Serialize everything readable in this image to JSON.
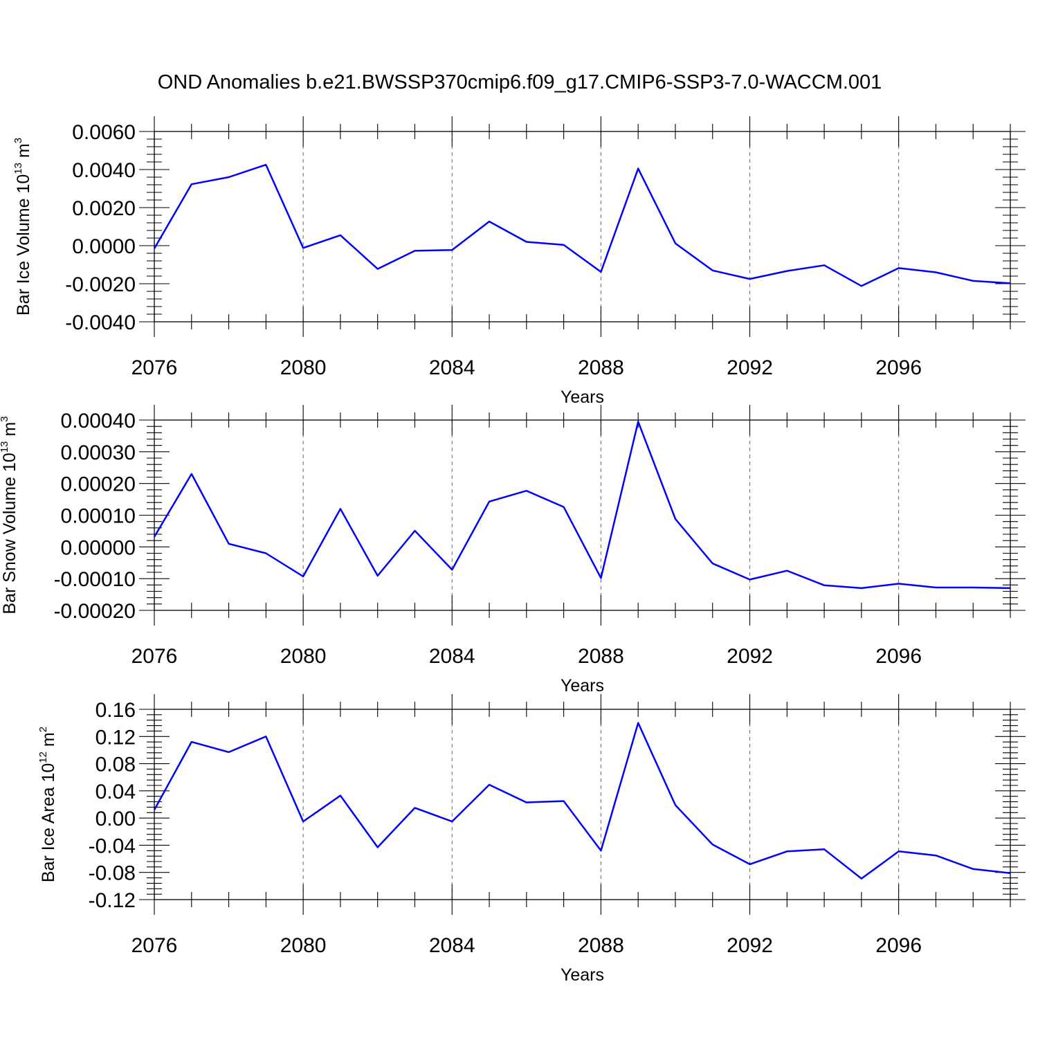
{
  "title": "OND Anomalies b.e21.BWSSP370cmip6.f09_g17.CMIP6-SSP3-7.0-WACCM.001",
  "colors": {
    "line": "#0000ff",
    "frame": "#000000",
    "grid": "#666666"
  },
  "chart_data": [
    {
      "type": "line",
      "name": "ice-volume",
      "title": "OND Anomalies b.e21.BWSSP370cmip6.f09_g17.CMIP6-SSP3-7.0-WACCM.001",
      "xlabel": "Years",
      "ylabel": "Bar Ice Volume 10",
      "ylabel_exp": "13",
      "ylabel_unit": "m",
      "ylabel_unit_exp": "3",
      "xlim": [
        2076,
        2099
      ],
      "ylim": [
        -0.004,
        0.006
      ],
      "xticks": [
        2076,
        2080,
        2084,
        2088,
        2092,
        2096
      ],
      "xtick_labels": [
        "2076",
        "2080",
        "2084",
        "2088",
        "2092",
        "2096"
      ],
      "yticks": [
        -0.004,
        -0.002,
        0.0,
        0.002,
        0.004,
        0.006
      ],
      "ytick_labels": [
        "-0.0040",
        "-0.0020",
        "0.0000",
        "0.0020",
        "0.0040",
        "0.0060"
      ],
      "grid": "vertical dashed",
      "x": [
        2076,
        2077,
        2078,
        2079,
        2080,
        2081,
        2082,
        2083,
        2084,
        2085,
        2086,
        2087,
        2088,
        2089,
        2090,
        2091,
        2092,
        2093,
        2094,
        2095,
        2096,
        2097,
        2098,
        2099
      ],
      "series": [
        {
          "name": "Bar Ice Volume",
          "values": [
            -0.00015,
            0.00323,
            0.0036,
            0.00425,
            -0.00012,
            0.00055,
            -0.00122,
            -0.00027,
            -0.00023,
            0.00127,
            0.0002,
            4e-05,
            -0.00138,
            0.00405,
            0.00012,
            -0.0013,
            -0.00175,
            -0.00133,
            -0.00103,
            -0.00212,
            -0.00118,
            -0.0014,
            -0.00185,
            -0.00198
          ]
        }
      ]
    },
    {
      "type": "line",
      "name": "snow-volume",
      "xlabel": "Years",
      "ylabel": "Bar Snow Volume 10",
      "ylabel_exp": "13",
      "ylabel_unit": "m",
      "ylabel_unit_exp": "3",
      "xlim": [
        2076,
        2099
      ],
      "ylim": [
        -0.0002,
        0.0004
      ],
      "xticks": [
        2076,
        2080,
        2084,
        2088,
        2092,
        2096
      ],
      "xtick_labels": [
        "2076",
        "2080",
        "2084",
        "2088",
        "2092",
        "2096"
      ],
      "yticks": [
        -0.0002,
        -0.0001,
        0.0,
        0.0001,
        0.0002,
        0.0003,
        0.0004
      ],
      "ytick_labels": [
        "-0.00020",
        "-0.00010",
        "0.00000",
        "0.00010",
        "0.00020",
        "0.00030",
        "0.00040"
      ],
      "grid": "vertical dashed",
      "x": [
        2076,
        2077,
        2078,
        2079,
        2080,
        2081,
        2082,
        2083,
        2084,
        2085,
        2086,
        2087,
        2088,
        2089,
        2090,
        2091,
        2092,
        2093,
        2094,
        2095,
        2096,
        2097,
        2098,
        2099
      ],
      "series": [
        {
          "name": "Bar Snow Volume",
          "values": [
            3.2e-05,
            0.00023,
            1e-05,
            -2e-05,
            -9.3e-05,
            0.00012,
            -9.1e-05,
            5.1e-05,
            -7.2e-05,
            0.000143,
            0.000177,
            0.000126,
            -9.8e-05,
            0.000395,
            8.8e-05,
            -5.2e-05,
            -0.000103,
            -7.5e-05,
            -0.000121,
            -0.00013,
            -0.000116,
            -0.000128,
            -0.000128,
            -0.00013
          ]
        }
      ]
    },
    {
      "type": "line",
      "name": "ice-area",
      "xlabel": "Years",
      "ylabel": "Bar Ice Area 10",
      "ylabel_exp": "12",
      "ylabel_unit": "m",
      "ylabel_unit_exp": "2",
      "xlim": [
        2076,
        2099
      ],
      "ylim": [
        -0.12,
        0.16
      ],
      "xticks": [
        2076,
        2080,
        2084,
        2088,
        2092,
        2096
      ],
      "xtick_labels": [
        "2076",
        "2080",
        "2084",
        "2088",
        "2092",
        "2096"
      ],
      "yticks": [
        -0.12,
        -0.08,
        -0.04,
        0.0,
        0.04,
        0.08,
        0.12,
        0.16
      ],
      "ytick_labels": [
        "-0.12",
        "-0.08",
        "-0.04",
        "0.00",
        "0.04",
        "0.08",
        "0.12",
        "0.16"
      ],
      "grid": "vertical dashed",
      "x": [
        2076,
        2077,
        2078,
        2079,
        2080,
        2081,
        2082,
        2083,
        2084,
        2085,
        2086,
        2087,
        2088,
        2089,
        2090,
        2091,
        2092,
        2093,
        2094,
        2095,
        2096,
        2097,
        2098,
        2099
      ],
      "series": [
        {
          "name": "Bar Ice Area",
          "values": [
            0.012,
            0.112,
            0.097,
            0.12,
            -0.005,
            0.033,
            -0.043,
            0.015,
            -0.005,
            0.049,
            0.023,
            0.025,
            -0.048,
            0.14,
            0.019,
            -0.039,
            -0.068,
            -0.049,
            -0.046,
            -0.089,
            -0.049,
            -0.055,
            -0.075,
            -0.081
          ]
        }
      ]
    }
  ]
}
